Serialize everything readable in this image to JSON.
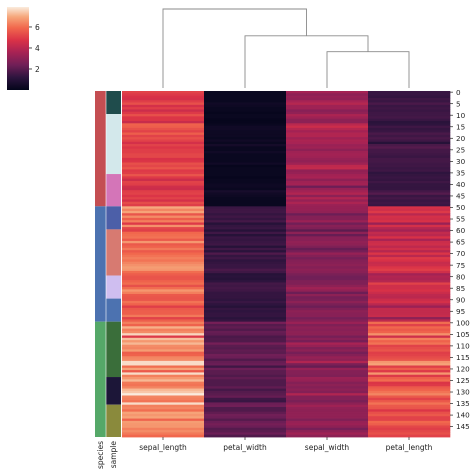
{
  "chart_data": {
    "type": "heatmap",
    "title": "",
    "columns": [
      "sepal_length",
      "petal_width",
      "sepal_width",
      "petal_length"
    ],
    "row_count": 150,
    "row_tick_labels": [
      "0",
      "5",
      "10",
      "15",
      "20",
      "25",
      "30",
      "35",
      "40",
      "45",
      "50",
      "55",
      "60",
      "65",
      "70",
      "75",
      "80",
      "85",
      "90",
      "95",
      "100",
      "105",
      "110",
      "115",
      "120",
      "125",
      "130",
      "135",
      "140",
      "145"
    ],
    "row_color_labels": [
      "species",
      "sample"
    ],
    "colorbar": {
      "min": 0,
      "max": 7.9,
      "ticks": [
        2,
        4,
        6
      ]
    },
    "column_dendrogram": {
      "leaf_order": [
        "sepal_length",
        "petal_width",
        "sepal_width",
        "petal_length"
      ],
      "merges": [
        {
          "left": "sepal_width",
          "right": "petal_length",
          "height_fraction": 0.46
        },
        {
          "left": "petal_width",
          "right": "sepal_width+petal_length",
          "height_fraction": 0.66
        },
        {
          "left": "sepal_length",
          "right": "petal_width+sepal_width+petal_length",
          "height_fraction": 1.0
        }
      ]
    },
    "species_colors": [
      {
        "from_row": 0,
        "to_row": 50,
        "color": "#c44e52"
      },
      {
        "from_row": 50,
        "to_row": 100,
        "color": "#4c72b0"
      },
      {
        "from_row": 100,
        "to_row": 150,
        "color": "#55a868"
      }
    ],
    "sample_colors": [
      {
        "from_row": 0,
        "to_row": 10,
        "color": "#1f4c4c"
      },
      {
        "from_row": 10,
        "to_row": 36,
        "color": "#d3e8eb"
      },
      {
        "from_row": 36,
        "to_row": 50,
        "color": "#d475b8"
      },
      {
        "from_row": 50,
        "to_row": 60,
        "color": "#4c5fa8"
      },
      {
        "from_row": 60,
        "to_row": 80,
        "color": "#d77a71"
      },
      {
        "from_row": 80,
        "to_row": 90,
        "color": "#cfbef0"
      },
      {
        "from_row": 90,
        "to_row": 100,
        "color": "#4c72b0"
      },
      {
        "from_row": 100,
        "to_row": 124,
        "color": "#3a6e3a"
      },
      {
        "from_row": 124,
        "to_row": 136,
        "color": "#1c1638"
      },
      {
        "from_row": 136,
        "to_row": 150,
        "color": "#8a8a3c"
      }
    ],
    "values": {
      "sepal_length": [
        5.1,
        4.9,
        4.7,
        4.6,
        5.0,
        5.4,
        4.6,
        5.0,
        4.4,
        4.9,
        5.4,
        4.8,
        4.8,
        4.3,
        5.8,
        5.7,
        5.4,
        5.1,
        5.7,
        5.1,
        5.4,
        5.1,
        4.6,
        5.1,
        4.8,
        5.0,
        5.0,
        5.2,
        5.2,
        4.7,
        4.8,
        5.4,
        5.2,
        5.5,
        4.9,
        5.0,
        5.5,
        4.9,
        4.4,
        5.1,
        5.0,
        4.5,
        4.4,
        5.0,
        5.1,
        4.8,
        5.1,
        4.6,
        5.3,
        5.0,
        7.0,
        6.4,
        6.9,
        5.5,
        6.5,
        5.7,
        6.3,
        4.9,
        6.6,
        5.2,
        5.0,
        5.9,
        6.0,
        6.1,
        5.6,
        6.7,
        5.6,
        5.8,
        6.2,
        5.6,
        5.9,
        6.1,
        6.3,
        6.1,
        6.4,
        6.6,
        6.8,
        6.7,
        6.0,
        5.7,
        5.5,
        5.5,
        5.8,
        6.0,
        5.4,
        6.0,
        6.7,
        6.3,
        5.6,
        5.5,
        5.5,
        6.1,
        5.8,
        5.0,
        5.6,
        5.7,
        5.7,
        6.2,
        5.1,
        5.7,
        6.3,
        5.8,
        7.1,
        6.3,
        6.5,
        7.6,
        4.9,
        7.3,
        6.7,
        7.2,
        6.5,
        6.4,
        6.8,
        5.7,
        5.8,
        6.4,
        6.5,
        7.7,
        7.7,
        6.0,
        6.9,
        5.6,
        7.7,
        6.3,
        6.7,
        7.2,
        6.2,
        6.1,
        6.4,
        7.2,
        7.4,
        7.9,
        6.4,
        6.3,
        6.1,
        7.7,
        6.3,
        6.4,
        6.0,
        6.9,
        6.7,
        6.9,
        5.8,
        6.8,
        6.7,
        6.7,
        6.3,
        6.5,
        6.2,
        5.9
      ],
      "sepal_width": [
        3.5,
        3.0,
        3.2,
        3.1,
        3.6,
        3.9,
        3.4,
        3.4,
        2.9,
        3.1,
        3.7,
        3.4,
        3.0,
        3.0,
        4.0,
        4.4,
        3.9,
        3.5,
        3.8,
        3.8,
        3.4,
        3.7,
        3.6,
        3.3,
        3.4,
        3.0,
        3.4,
        3.5,
        3.4,
        3.2,
        3.1,
        3.4,
        4.1,
        4.2,
        3.1,
        3.2,
        3.5,
        3.6,
        3.0,
        3.4,
        3.5,
        2.3,
        3.2,
        3.5,
        3.8,
        3.0,
        3.8,
        3.2,
        3.7,
        3.3,
        3.2,
        3.2,
        3.1,
        2.3,
        2.8,
        2.8,
        3.3,
        2.4,
        2.9,
        2.7,
        2.0,
        3.0,
        2.2,
        2.9,
        2.9,
        3.1,
        3.0,
        2.7,
        2.2,
        2.5,
        3.2,
        2.8,
        2.5,
        2.8,
        2.9,
        3.0,
        2.8,
        3.0,
        2.9,
        2.6,
        2.4,
        2.4,
        2.7,
        2.7,
        3.0,
        3.4,
        3.1,
        2.3,
        3.0,
        2.5,
        2.6,
        3.0,
        2.6,
        2.3,
        2.7,
        3.0,
        2.9,
        2.9,
        2.5,
        2.8,
        3.3,
        2.7,
        3.0,
        2.9,
        3.0,
        3.0,
        2.5,
        2.9,
        2.5,
        3.6,
        3.2,
        2.7,
        3.0,
        2.5,
        2.8,
        3.2,
        3.0,
        3.8,
        2.6,
        2.2,
        3.2,
        2.8,
        2.8,
        2.7,
        3.3,
        3.2,
        2.8,
        3.0,
        2.8,
        3.0,
        2.8,
        3.8,
        2.8,
        2.8,
        2.6,
        3.0,
        3.4,
        3.1,
        3.0,
        3.1,
        3.1,
        3.1,
        2.7,
        3.2,
        3.3,
        3.0,
        2.5,
        3.0,
        3.4,
        3.0
      ],
      "petal_length": [
        1.4,
        1.4,
        1.3,
        1.5,
        1.4,
        1.7,
        1.4,
        1.5,
        1.4,
        1.5,
        1.5,
        1.6,
        1.4,
        1.1,
        1.2,
        1.5,
        1.3,
        1.4,
        1.7,
        1.5,
        1.7,
        1.5,
        1.0,
        1.7,
        1.9,
        1.6,
        1.6,
        1.5,
        1.4,
        1.6,
        1.6,
        1.5,
        1.5,
        1.4,
        1.5,
        1.2,
        1.3,
        1.4,
        1.3,
        1.5,
        1.3,
        1.3,
        1.3,
        1.6,
        1.9,
        1.4,
        1.6,
        1.4,
        1.5,
        1.4,
        4.7,
        4.5,
        4.9,
        4.0,
        4.6,
        4.5,
        4.7,
        3.3,
        4.6,
        3.9,
        3.5,
        4.2,
        4.0,
        4.7,
        3.6,
        4.4,
        4.5,
        4.1,
        4.5,
        3.9,
        4.8,
        4.0,
        4.9,
        4.7,
        4.3,
        4.4,
        4.8,
        5.0,
        4.5,
        3.5,
        3.8,
        3.7,
        3.9,
        5.1,
        4.5,
        4.5,
        4.7,
        4.4,
        4.1,
        4.0,
        4.4,
        4.6,
        4.0,
        3.3,
        4.2,
        4.2,
        4.2,
        4.3,
        3.0,
        4.1,
        6.0,
        5.1,
        5.9,
        5.6,
        5.8,
        6.6,
        4.5,
        6.3,
        5.8,
        6.1,
        5.1,
        5.3,
        5.5,
        5.0,
        5.1,
        5.3,
        5.5,
        6.7,
        6.9,
        5.0,
        5.7,
        4.9,
        6.7,
        4.9,
        5.7,
        6.0,
        4.8,
        4.9,
        5.6,
        5.8,
        6.1,
        6.4,
        5.6,
        5.1,
        5.6,
        6.1,
        5.6,
        5.5,
        4.8,
        5.4,
        5.6,
        5.1,
        5.1,
        5.9,
        5.7,
        5.2,
        5.0,
        5.2,
        5.4,
        5.1
      ],
      "petal_width": [
        0.2,
        0.2,
        0.2,
        0.2,
        0.2,
        0.4,
        0.3,
        0.2,
        0.2,
        0.1,
        0.2,
        0.2,
        0.1,
        0.1,
        0.2,
        0.4,
        0.4,
        0.3,
        0.3,
        0.3,
        0.2,
        0.4,
        0.2,
        0.5,
        0.2,
        0.2,
        0.4,
        0.2,
        0.2,
        0.2,
        0.2,
        0.4,
        0.1,
        0.2,
        0.2,
        0.2,
        0.2,
        0.1,
        0.2,
        0.2,
        0.3,
        0.3,
        0.2,
        0.6,
        0.4,
        0.3,
        0.2,
        0.2,
        0.2,
        0.2,
        1.4,
        1.5,
        1.5,
        1.3,
        1.5,
        1.3,
        1.6,
        1.0,
        1.3,
        1.4,
        1.0,
        1.5,
        1.0,
        1.4,
        1.3,
        1.4,
        1.5,
        1.0,
        1.5,
        1.1,
        1.8,
        1.3,
        1.5,
        1.2,
        1.3,
        1.4,
        1.4,
        1.7,
        1.5,
        1.0,
        1.1,
        1.0,
        1.2,
        1.6,
        1.5,
        1.6,
        1.5,
        1.3,
        1.3,
        1.3,
        1.2,
        1.4,
        1.2,
        1.0,
        1.3,
        1.2,
        1.3,
        1.3,
        1.1,
        1.3,
        2.5,
        1.9,
        2.1,
        1.8,
        2.2,
        2.1,
        1.7,
        1.8,
        1.8,
        2.5,
        2.0,
        1.9,
        2.1,
        2.0,
        2.4,
        2.3,
        1.8,
        2.2,
        2.3,
        1.5,
        2.3,
        2.0,
        2.0,
        1.8,
        2.1,
        1.8,
        1.8,
        1.8,
        2.1,
        1.6,
        1.9,
        2.0,
        2.2,
        1.5,
        1.4,
        2.3,
        2.4,
        1.8,
        1.8,
        2.1,
        2.4,
        2.3,
        1.9,
        2.3,
        2.5,
        2.3,
        1.9,
        2.0,
        2.3,
        1.8
      ]
    }
  }
}
